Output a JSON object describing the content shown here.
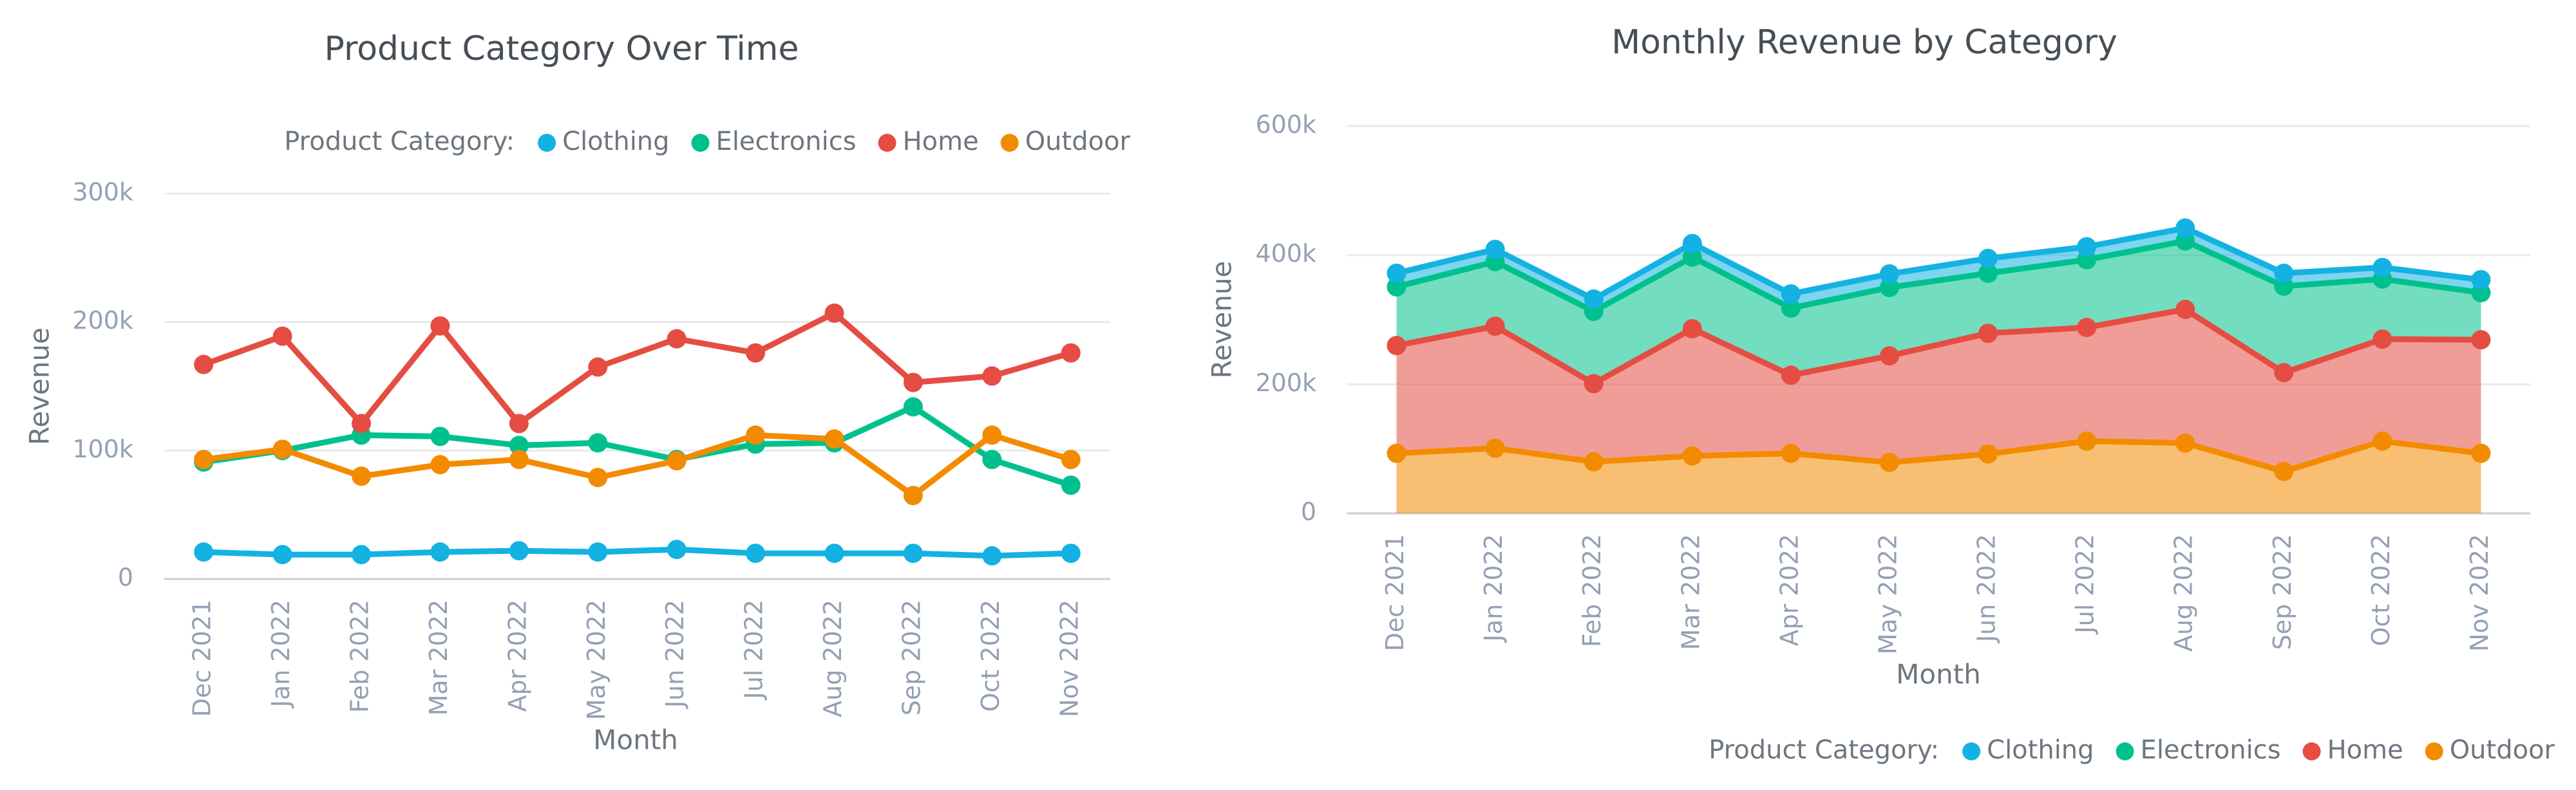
{
  "chart_data": [
    {
      "type": "line",
      "title": "Product Category Over Time",
      "x_label": "Month",
      "y_label": "Revenue",
      "legend_title": "Product Category:",
      "legend_position": "top",
      "grid": true,
      "categories": [
        "Dec 2021",
        "Jan 2022",
        "Feb 2022",
        "Mar 2022",
        "Apr 2022",
        "May 2022",
        "Jun 2022",
        "Jul 2022",
        "Aug 2022",
        "Sep 2022",
        "Oct 2022",
        "Nov 2022"
      ],
      "ylim": [
        0,
        300000
      ],
      "yticks": [
        {
          "value": 0,
          "label": "0"
        },
        {
          "value": 100000,
          "label": "100k"
        },
        {
          "value": 200000,
          "label": "200k"
        },
        {
          "value": 300000,
          "label": "300k"
        }
      ],
      "series": [
        {
          "name": "Clothing",
          "color": "#14b2e2",
          "values": [
            21000,
            19000,
            19000,
            21000,
            22000,
            21000,
            23000,
            20000,
            20000,
            20000,
            18000,
            20000
          ]
        },
        {
          "name": "Electronics",
          "color": "#00c18d",
          "values": [
            91000,
            100000,
            112000,
            111000,
            104000,
            106000,
            93000,
            105000,
            106000,
            134000,
            93000,
            73000
          ]
        },
        {
          "name": "Home",
          "color": "#e54d42",
          "values": [
            167000,
            189000,
            121000,
            197000,
            121000,
            165000,
            187000,
            176000,
            207000,
            153000,
            158000,
            176000
          ]
        },
        {
          "name": "Outdoor",
          "color": "#f38b00",
          "values": [
            93000,
            101000,
            80000,
            89000,
            93000,
            79000,
            92000,
            112000,
            109000,
            65000,
            112000,
            93000
          ]
        }
      ]
    },
    {
      "type": "area",
      "stacked": true,
      "title": "Monthly Revenue by Category",
      "x_label": "Month",
      "y_label": "Revenue",
      "legend_title": "Product Category:",
      "legend_position": "bottom",
      "grid": true,
      "categories": [
        "Dec 2021",
        "Jan 2022",
        "Feb 2022",
        "Mar 2022",
        "Apr 2022",
        "May 2022",
        "Jun 2022",
        "Jul 2022",
        "Aug 2022",
        "Sep 2022",
        "Oct 2022",
        "Nov 2022"
      ],
      "ylim": [
        0,
        600000
      ],
      "yticks": [
        {
          "value": 0,
          "label": "0"
        },
        {
          "value": 200000,
          "label": "200k"
        },
        {
          "value": 400000,
          "label": "400k"
        },
        {
          "value": 600000,
          "label": "600k"
        }
      ],
      "series": [
        {
          "name": "Clothing",
          "color": "#14b2e2",
          "values": [
            21000,
            19000,
            19000,
            21000,
            22000,
            21000,
            23000,
            20000,
            20000,
            20000,
            18000,
            20000
          ]
        },
        {
          "name": "Electronics",
          "color": "#00c18d",
          "values": [
            91000,
            100000,
            112000,
            111000,
            104000,
            106000,
            93000,
            105000,
            106000,
            134000,
            93000,
            73000
          ]
        },
        {
          "name": "Home",
          "color": "#e54d42",
          "values": [
            167000,
            189000,
            121000,
            197000,
            121000,
            165000,
            187000,
            176000,
            207000,
            153000,
            158000,
            176000
          ]
        },
        {
          "name": "Outdoor",
          "color": "#f38b00",
          "values": [
            93000,
            101000,
            80000,
            89000,
            93000,
            79000,
            92000,
            112000,
            109000,
            65000,
            112000,
            93000
          ]
        }
      ]
    }
  ]
}
